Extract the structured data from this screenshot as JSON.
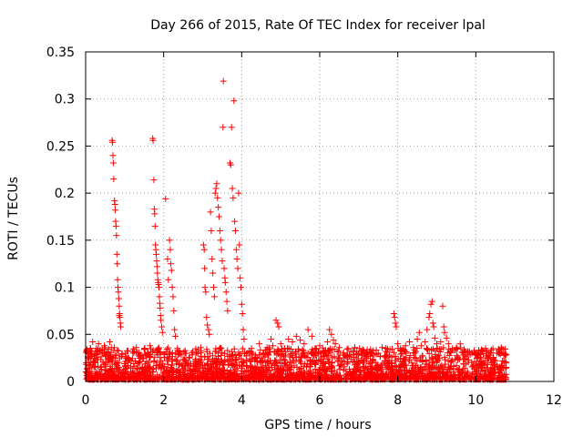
{
  "chart_data": {
    "type": "scatter",
    "title": "Day 266 of 2015, Rate Of TEC Index for receiver lpal",
    "xlabel": "GPS time / hours",
    "ylabel": "ROTI / TECUs",
    "xlim": [
      0,
      12
    ],
    "ylim": [
      0,
      0.35
    ],
    "x_ticks": [
      "0",
      "2",
      "4",
      "6",
      "8",
      "10",
      "12"
    ],
    "y_ticks": [
      "0",
      "0.05",
      "0.1",
      "0.15",
      "0.2",
      "0.25",
      "0.3",
      "0.35"
    ],
    "grid": true,
    "marker": "+",
    "series_color": "#ff0000",
    "series": [
      {
        "name": "ROTI",
        "points": [
          [
            0.02,
            0.01
          ],
          [
            0.05,
            0.03
          ],
          [
            0.08,
            0.018
          ],
          [
            0.12,
            0.035
          ],
          [
            0.18,
            0.042
          ],
          [
            0.22,
            0.022
          ],
          [
            0.28,
            0.028
          ],
          [
            0.33,
            0.04
          ],
          [
            0.38,
            0.015
          ],
          [
            0.42,
            0.033
          ],
          [
            0.48,
            0.038
          ],
          [
            0.52,
            0.02
          ],
          [
            0.58,
            0.03
          ],
          [
            0.62,
            0.042
          ],
          [
            0.66,
            0.036
          ],
          [
            0.68,
            0.256
          ],
          [
            0.69,
            0.254
          ],
          [
            0.7,
            0.24
          ],
          [
            0.71,
            0.232
          ],
          [
            0.72,
            0.215
          ],
          [
            0.74,
            0.192
          ],
          [
            0.75,
            0.188
          ],
          [
            0.76,
            0.182
          ],
          [
            0.77,
            0.17
          ],
          [
            0.78,
            0.165
          ],
          [
            0.79,
            0.155
          ],
          [
            0.8,
            0.135
          ],
          [
            0.81,
            0.125
          ],
          [
            0.82,
            0.108
          ],
          [
            0.83,
            0.1
          ],
          [
            0.84,
            0.095
          ],
          [
            0.85,
            0.088
          ],
          [
            0.86,
            0.08
          ],
          [
            0.87,
            0.072
          ],
          [
            0.88,
            0.068
          ],
          [
            0.89,
            0.062
          ],
          [
            0.9,
            0.058
          ],
          [
            0.86,
            0.07
          ],
          [
            1.02,
            0.03
          ],
          [
            1.1,
            0.025
          ],
          [
            1.2,
            0.032
          ],
          [
            1.3,
            0.036
          ],
          [
            1.4,
            0.028
          ],
          [
            1.5,
            0.034
          ],
          [
            1.6,
            0.03
          ],
          [
            1.65,
            0.038
          ],
          [
            1.72,
            0.258
          ],
          [
            1.73,
            0.256
          ],
          [
            1.75,
            0.214
          ],
          [
            1.76,
            0.183
          ],
          [
            1.77,
            0.178
          ],
          [
            1.78,
            0.165
          ],
          [
            1.79,
            0.145
          ],
          [
            1.8,
            0.14
          ],
          [
            1.81,
            0.135
          ],
          [
            1.82,
            0.128
          ],
          [
            1.83,
            0.122
          ],
          [
            1.84,
            0.115
          ],
          [
            1.85,
            0.108
          ],
          [
            1.86,
            0.105
          ],
          [
            1.87,
            0.103
          ],
          [
            1.88,
            0.1
          ],
          [
            1.89,
            0.09
          ],
          [
            1.9,
            0.083
          ],
          [
            1.91,
            0.078
          ],
          [
            1.92,
            0.07
          ],
          [
            1.93,
            0.065
          ],
          [
            1.95,
            0.058
          ],
          [
            1.97,
            0.052
          ],
          [
            2.05,
            0.194
          ],
          [
            2.1,
            0.13
          ],
          [
            2.12,
            0.108
          ],
          [
            2.15,
            0.15
          ],
          [
            2.17,
            0.14
          ],
          [
            2.18,
            0.125
          ],
          [
            2.2,
            0.118
          ],
          [
            2.22,
            0.1
          ],
          [
            2.24,
            0.09
          ],
          [
            2.26,
            0.075
          ],
          [
            2.28,
            0.055
          ],
          [
            2.3,
            0.048
          ],
          [
            2.35,
            0.035
          ],
          [
            2.45,
            0.028
          ],
          [
            2.55,
            0.03
          ],
          [
            2.65,
            0.025
          ],
          [
            2.75,
            0.032
          ],
          [
            2.85,
            0.03
          ],
          [
            2.95,
            0.036
          ],
          [
            3.02,
            0.145
          ],
          [
            3.04,
            0.14
          ],
          [
            3.05,
            0.12
          ],
          [
            3.06,
            0.1
          ],
          [
            3.08,
            0.095
          ],
          [
            3.1,
            0.068
          ],
          [
            3.12,
            0.06
          ],
          [
            3.15,
            0.055
          ],
          [
            3.17,
            0.05
          ],
          [
            3.2,
            0.18
          ],
          [
            3.22,
            0.16
          ],
          [
            3.24,
            0.13
          ],
          [
            3.26,
            0.115
          ],
          [
            3.28,
            0.1
          ],
          [
            3.3,
            0.09
          ],
          [
            3.32,
            0.2
          ],
          [
            3.34,
            0.205
          ],
          [
            3.36,
            0.21
          ],
          [
            3.38,
            0.195
          ],
          [
            3.4,
            0.185
          ],
          [
            3.42,
            0.175
          ],
          [
            3.44,
            0.16
          ],
          [
            3.46,
            0.15
          ],
          [
            3.48,
            0.14
          ],
          [
            3.5,
            0.128
          ],
          [
            3.52,
            0.27
          ],
          [
            3.53,
            0.319
          ],
          [
            3.55,
            0.12
          ],
          [
            3.57,
            0.11
          ],
          [
            3.58,
            0.105
          ],
          [
            3.6,
            0.095
          ],
          [
            3.62,
            0.085
          ],
          [
            3.64,
            0.075
          ],
          [
            3.7,
            0.232
          ],
          [
            3.72,
            0.23
          ],
          [
            3.74,
            0.27
          ],
          [
            3.76,
            0.205
          ],
          [
            3.78,
            0.195
          ],
          [
            3.8,
            0.298
          ],
          [
            3.82,
            0.17
          ],
          [
            3.84,
            0.16
          ],
          [
            3.86,
            0.14
          ],
          [
            3.88,
            0.13
          ],
          [
            3.9,
            0.12
          ],
          [
            3.92,
            0.2
          ],
          [
            3.94,
            0.145
          ],
          [
            3.96,
            0.11
          ],
          [
            3.98,
            0.1
          ],
          [
            4.0,
            0.082
          ],
          [
            4.02,
            0.072
          ],
          [
            4.04,
            0.055
          ],
          [
            4.06,
            0.045
          ],
          [
            4.15,
            0.03
          ],
          [
            4.25,
            0.035
          ],
          [
            4.35,
            0.028
          ],
          [
            4.45,
            0.04
          ],
          [
            4.55,
            0.03
          ],
          [
            4.65,
            0.036
          ],
          [
            4.75,
            0.045
          ],
          [
            4.8,
            0.038
          ],
          [
            4.88,
            0.065
          ],
          [
            4.92,
            0.062
          ],
          [
            4.95,
            0.058
          ],
          [
            5.0,
            0.04
          ],
          [
            5.1,
            0.035
          ],
          [
            5.2,
            0.045
          ],
          [
            5.3,
            0.042
          ],
          [
            5.4,
            0.048
          ],
          [
            5.5,
            0.044
          ],
          [
            5.6,
            0.04
          ],
          [
            5.7,
            0.055
          ],
          [
            5.8,
            0.048
          ],
          [
            5.9,
            0.035
          ],
          [
            6.0,
            0.038
          ],
          [
            6.1,
            0.032
          ],
          [
            6.2,
            0.042
          ],
          [
            6.25,
            0.055
          ],
          [
            6.3,
            0.05
          ],
          [
            6.35,
            0.044
          ],
          [
            6.4,
            0.04
          ],
          [
            6.5,
            0.036
          ],
          [
            6.6,
            0.03
          ],
          [
            6.7,
            0.028
          ],
          [
            6.8,
            0.032
          ],
          [
            6.9,
            0.036
          ],
          [
            7.0,
            0.03
          ],
          [
            7.1,
            0.034
          ],
          [
            7.2,
            0.03
          ],
          [
            7.3,
            0.034
          ],
          [
            7.4,
            0.028
          ],
          [
            7.5,
            0.03
          ],
          [
            7.6,
            0.036
          ],
          [
            7.7,
            0.032
          ],
          [
            7.8,
            0.034
          ],
          [
            7.9,
            0.072
          ],
          [
            7.92,
            0.068
          ],
          [
            7.94,
            0.062
          ],
          [
            7.96,
            0.058
          ],
          [
            8.0,
            0.04
          ],
          [
            8.1,
            0.032
          ],
          [
            8.2,
            0.038
          ],
          [
            8.3,
            0.042
          ],
          [
            8.4,
            0.036
          ],
          [
            8.5,
            0.045
          ],
          [
            8.55,
            0.052
          ],
          [
            8.6,
            0.038
          ],
          [
            8.7,
            0.042
          ],
          [
            8.75,
            0.055
          ],
          [
            8.8,
            0.068
          ],
          [
            8.82,
            0.072
          ],
          [
            8.85,
            0.082
          ],
          [
            8.88,
            0.085
          ],
          [
            8.9,
            0.062
          ],
          [
            8.92,
            0.058
          ],
          [
            8.95,
            0.046
          ],
          [
            9.0,
            0.04
          ],
          [
            9.1,
            0.042
          ],
          [
            9.15,
            0.08
          ],
          [
            9.18,
            0.058
          ],
          [
            9.2,
            0.052
          ],
          [
            9.25,
            0.046
          ],
          [
            9.3,
            0.04
          ],
          [
            9.4,
            0.035
          ],
          [
            9.5,
            0.036
          ],
          [
            9.6,
            0.04
          ],
          [
            9.7,
            0.034
          ],
          [
            9.8,
            0.032
          ],
          [
            9.9,
            0.03
          ],
          [
            10.0,
            0.028
          ],
          [
            10.1,
            0.022
          ],
          [
            10.2,
            0.02
          ],
          [
            10.3,
            0.018
          ],
          [
            10.4,
            0.02
          ],
          [
            10.5,
            0.022
          ],
          [
            10.55,
            0.016
          ],
          [
            10.6,
            0.03
          ],
          [
            10.65,
            0.036
          ],
          [
            10.7,
            0.034
          ],
          [
            10.75,
            0.028
          ],
          [
            10.78,
            0.015
          ]
        ]
      }
    ]
  }
}
